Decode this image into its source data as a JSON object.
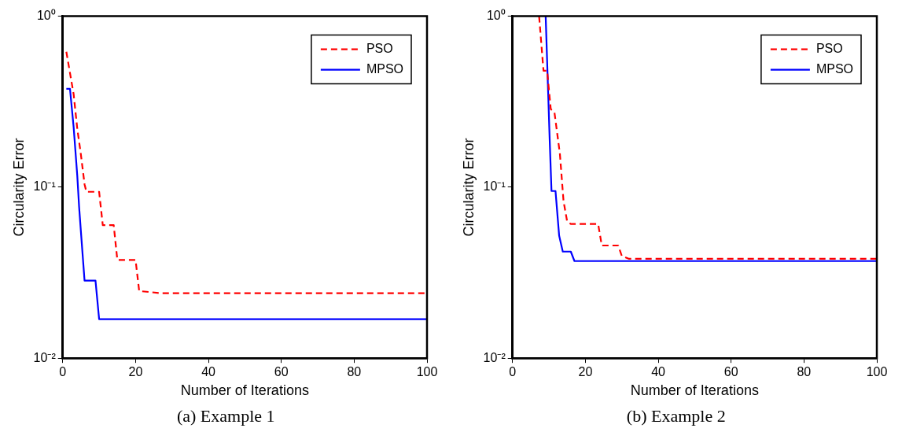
{
  "chart_data": [
    {
      "type": "line",
      "xlabel": "Number of Iterations",
      "ylabel": "Circularity Error",
      "annotations": [
        "(a) Example 1"
      ],
      "log": "y",
      "xlim": [
        0,
        100
      ],
      "xticks": [
        0,
        20,
        40,
        60,
        80,
        100
      ],
      "ylim": [
        0.01,
        1
      ],
      "yticks": [
        {
          "value": 0.01,
          "label": "10⁻²"
        },
        {
          "value": 0.1,
          "label": "10⁻¹"
        },
        {
          "value": 1,
          "label": "10⁰"
        }
      ],
      "grid": false,
      "legend": "top right",
      "marker": "none",
      "series": [
        {
          "name": "PSO",
          "color": "#ff0000",
          "line_style": "dashed",
          "x": [
            1,
            3,
            4,
            5,
            6,
            6.5,
            10,
            11,
            14,
            15,
            20,
            21,
            27,
            100
          ],
          "values": [
            0.62,
            0.35,
            0.22,
            0.155,
            0.104,
            0.094,
            0.094,
            0.06,
            0.06,
            0.0375,
            0.0375,
            0.0247,
            0.024,
            0.024
          ]
        },
        {
          "name": "MPSO",
          "color": "#0000ff",
          "line_style": "solid",
          "x": [
            1,
            2,
            3,
            4,
            4.5,
            5,
            6,
            9,
            10,
            100
          ],
          "values": [
            0.376,
            0.376,
            0.225,
            0.117,
            0.077,
            0.055,
            0.0284,
            0.0284,
            0.0169,
            0.0169
          ]
        }
      ]
    },
    {
      "type": "line",
      "xlabel": "Number of Iterations",
      "ylabel": "Circularity Error",
      "annotations": [
        "(b) Example 2"
      ],
      "log": "y",
      "xlim": [
        0,
        100
      ],
      "xticks": [
        0,
        20,
        40,
        60,
        80,
        100
      ],
      "ylim": [
        0.01,
        1
      ],
      "yticks": [
        {
          "value": 0.01,
          "label": "10⁻²"
        },
        {
          "value": 0.1,
          "label": "10⁻¹"
        },
        {
          "value": 1,
          "label": "10⁰"
        }
      ],
      "grid": false,
      "legend": "top right",
      "marker": "none",
      "series": [
        {
          "name": "PSO",
          "color": "#ff0000",
          "line_style": "dashed",
          "x": [
            7.3,
            8.5,
            9.5,
            10.5,
            11.5,
            13,
            14,
            15,
            16,
            23.5,
            24.5,
            29,
            30,
            32,
            100
          ],
          "values": [
            1,
            0.48,
            0.48,
            0.286,
            0.275,
            0.157,
            0.083,
            0.063,
            0.061,
            0.061,
            0.0456,
            0.0456,
            0.0396,
            0.0381,
            0.0381
          ]
        },
        {
          "name": "MPSO",
          "color": "#0000ff",
          "line_style": "solid",
          "x": [
            9.1,
            10.2,
            10.7,
            11.8,
            12.8,
            13.8,
            16,
            17,
            100
          ],
          "values": [
            1,
            0.19,
            0.095,
            0.095,
            0.052,
            0.042,
            0.042,
            0.037,
            0.037
          ]
        }
      ]
    }
  ]
}
